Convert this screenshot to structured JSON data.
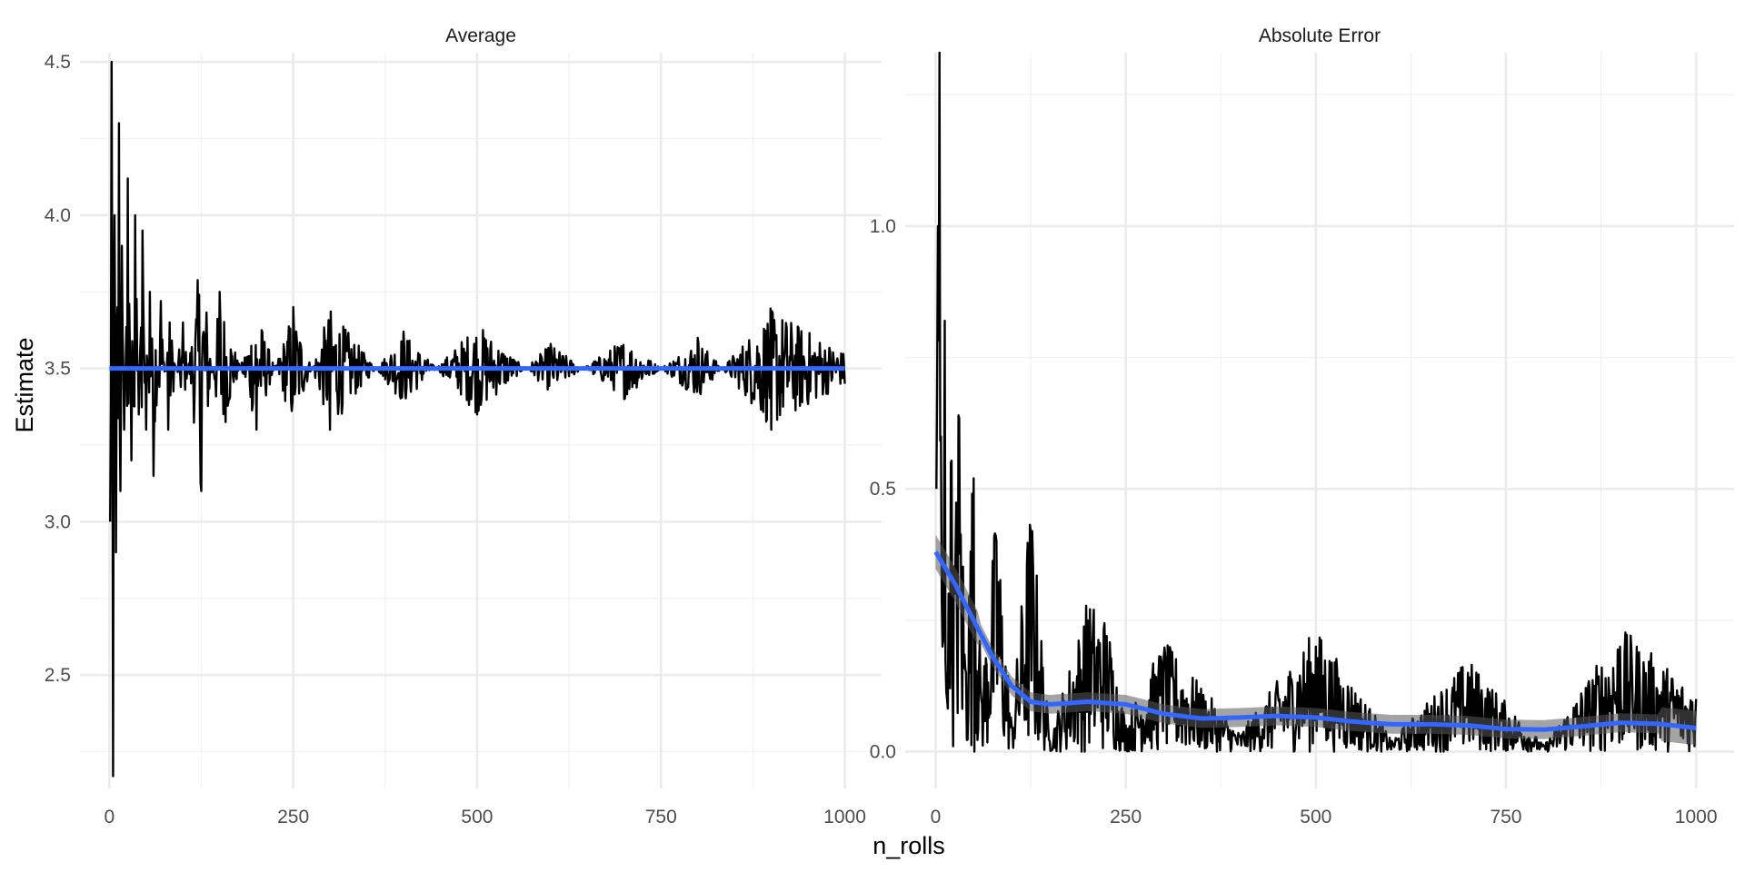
{
  "chart_data": {
    "type": "line",
    "facet_layout": "two panels side by side, shared x axis title",
    "xlabel": "n_rolls",
    "ylabel": "Estimate",
    "grid": true,
    "legend": "none",
    "colors": {
      "raw_line": "#000000",
      "reference_line": "#3366FF",
      "smooth_ribbon": "#595959",
      "grid_major": "#EBEBEB",
      "grid_minor": "#F2F2F2"
    },
    "panels": [
      {
        "title": "Average",
        "xlim": [
          -40,
          1050
        ],
        "ylim": [
          2.13,
          4.53
        ],
        "x_ticks": [
          0,
          250,
          500,
          750,
          1000
        ],
        "x_tick_labels": [
          "0",
          "250",
          "500",
          "750",
          "1000"
        ],
        "y_ticks": [
          2.5,
          3.0,
          3.5,
          4.0,
          4.5
        ],
        "y_tick_labels": [
          "2.5",
          "3.0",
          "3.5",
          "4.0",
          "4.5"
        ],
        "series": [
          {
            "kind": "line",
            "description": "running sample average of die rolls, noise shrinking around 3.5",
            "x": [
              1,
              3,
              5,
              7,
              9,
              11,
              13,
              15,
              17,
              20,
              25,
              30,
              35,
              40,
              45,
              50,
              55,
              60,
              70,
              80,
              100,
              125,
              150,
              200,
              250,
              300,
              400,
              500,
              600,
              700,
              800,
              900,
              1000
            ],
            "y": [
              3.0,
              4.5,
              2.17,
              4.0,
              2.9,
              3.7,
              4.3,
              3.1,
              3.9,
              3.3,
              4.12,
              3.2,
              4.0,
              3.35,
              3.95,
              3.3,
              3.75,
              3.15,
              3.72,
              3.3,
              3.65,
              3.1,
              3.75,
              3.3,
              3.7,
              3.3,
              3.62,
              3.35,
              3.58,
              3.4,
              3.6,
              3.3,
              3.45
            ]
          },
          {
            "kind": "hline",
            "description": "true expected value",
            "y": 3.5
          }
        ]
      },
      {
        "title": "Absolute Error",
        "xlim": [
          -40,
          1050
        ],
        "ylim": [
          -0.07,
          1.33
        ],
        "x_ticks": [
          0,
          250,
          500,
          750,
          1000
        ],
        "x_tick_labels": [
          "0",
          "250",
          "500",
          "750",
          "1000"
        ],
        "y_ticks": [
          0.0,
          0.5,
          1.0
        ],
        "y_tick_labels": [
          "0.0",
          "0.5",
          "1.0"
        ],
        "series": [
          {
            "kind": "line",
            "description": "absolute error of running average vs 3.5",
            "x": [
              1,
              3,
              5,
              7,
              9,
              12,
              15,
              20,
              25,
              30,
              40,
              50,
              60,
              80,
              100,
              125,
              150,
              200,
              225,
              250,
              300,
              400,
              500,
              600,
              700,
              800,
              900,
              1000
            ],
            "y": [
              0.5,
              1.0,
              1.33,
              0.6,
              0.2,
              0.82,
              0.1,
              0.55,
              0.3,
              0.64,
              0.15,
              0.52,
              0.1,
              0.4,
              0.05,
              0.42,
              0.02,
              0.25,
              0.22,
              0.05,
              0.18,
              0.03,
              0.2,
              0.02,
              0.15,
              0.01,
              0.2,
              0.1
            ]
          },
          {
            "kind": "smooth",
            "description": "loess trend with confidence band",
            "x": [
              0,
              25,
              50,
              75,
              100,
              125,
              150,
              200,
              250,
              300,
              350,
              400,
              450,
              500,
              550,
              600,
              650,
              700,
              750,
              800,
              850,
              900,
              950,
              1000
            ],
            "y": [
              0.38,
              0.32,
              0.25,
              0.18,
              0.125,
              0.095,
              0.09,
              0.095,
              0.09,
              0.072,
              0.063,
              0.065,
              0.068,
              0.065,
              0.057,
              0.052,
              0.052,
              0.05,
              0.043,
              0.042,
              0.048,
              0.055,
              0.053,
              0.045
            ],
            "band_halfwidth": 0.018
          }
        ]
      }
    ]
  }
}
